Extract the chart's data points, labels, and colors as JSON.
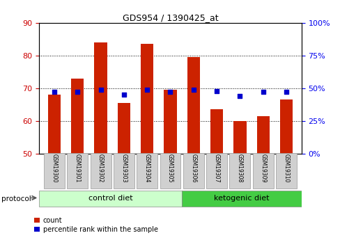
{
  "title": "GDS954 / 1390425_at",
  "samples": [
    "GSM19300",
    "GSM19301",
    "GSM19302",
    "GSM19303",
    "GSM19304",
    "GSM19305",
    "GSM19306",
    "GSM19307",
    "GSM19308",
    "GSM19309",
    "GSM19310"
  ],
  "count_values": [
    68,
    73,
    84,
    65.5,
    83.5,
    69.5,
    79.5,
    63.5,
    60,
    61.5,
    66.5
  ],
  "percentile_values": [
    47,
    47,
    49,
    45,
    49,
    47,
    49,
    48,
    44,
    47,
    47
  ],
  "ylim_left": [
    50,
    90
  ],
  "ylim_right": [
    0,
    100
  ],
  "yticks_left": [
    50,
    60,
    70,
    80,
    90
  ],
  "yticks_right": [
    0,
    25,
    50,
    75,
    100
  ],
  "bar_color": "#cc2200",
  "dot_color": "#0000cc",
  "bar_bottom": 50,
  "protocol_label": "protocol",
  "group1_label": "control diet",
  "group2_label": "ketogenic diet",
  "group1_indices": [
    0,
    1,
    2,
    3,
    4,
    5
  ],
  "group2_indices": [
    6,
    7,
    8,
    9,
    10
  ],
  "group1_color": "#ccffcc",
  "group2_color": "#44cc44",
  "legend_count": "count",
  "legend_pct": "percentile rank within the sample",
  "bg_color": "#ffffff",
  "tick_label_color_left": "#cc0000",
  "tick_label_color_right": "#0000ee",
  "bar_width": 0.55,
  "plot_bg": "#ffffff",
  "right_axis_suffix": "%"
}
